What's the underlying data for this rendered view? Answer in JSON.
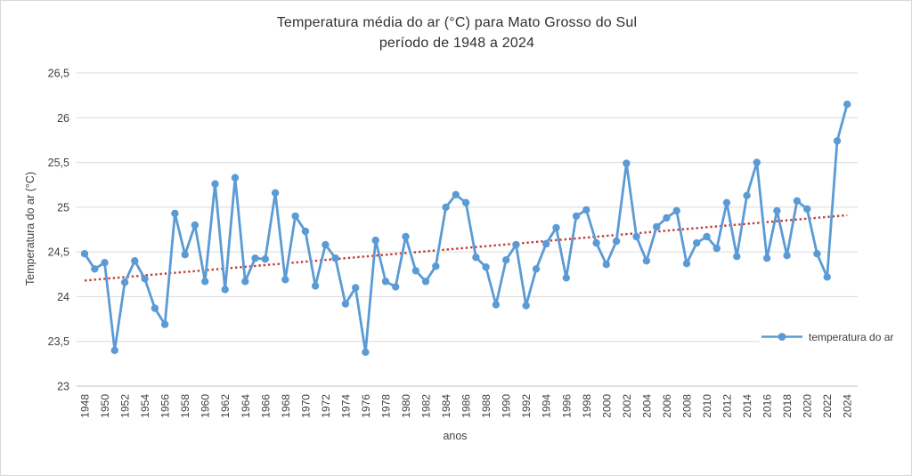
{
  "chart_data": {
    "type": "line",
    "title": "Temperatura média do ar (°C) para Mato Grosso do Sul",
    "subtitle": "período de 1948 a 2024",
    "xlabel": "anos",
    "ylabel": "Temperatura do ar (°C)",
    "ylim": [
      23,
      26.5
    ],
    "grid": "horizontal",
    "ytick_values": [
      26.5,
      26,
      25.5,
      25,
      24.5,
      24,
      23.5,
      23
    ],
    "ytick_labels": [
      "26,5",
      "26",
      "25,5",
      "25",
      "24,5",
      "24",
      "23,5",
      "23"
    ],
    "xtick_labels": [
      "1948",
      "1950",
      "1952",
      "1954",
      "1956",
      "1958",
      "1960",
      "1962",
      "1964",
      "1966",
      "1968",
      "1970",
      "1972",
      "1974",
      "1976",
      "1978",
      "1980",
      "1982",
      "1984",
      "1986",
      "1988",
      "1990",
      "1992",
      "1994",
      "1996",
      "1998",
      "2000",
      "2002",
      "2004",
      "2006",
      "2008",
      "2010",
      "2012",
      "2014",
      "2016",
      "2018",
      "2020",
      "2022",
      "2024"
    ],
    "legend": {
      "position": "right-middle",
      "entries": [
        {
          "label": "temperatura do ar",
          "color": "#5B9BD5",
          "marker": "circle"
        }
      ]
    },
    "series": [
      {
        "name": "temperatura do ar",
        "color": "#5B9BD5",
        "marker": "circle",
        "x": [
          1948,
          1949,
          1950,
          1951,
          1952,
          1953,
          1954,
          1955,
          1956,
          1957,
          1958,
          1959,
          1960,
          1961,
          1962,
          1963,
          1964,
          1965,
          1966,
          1967,
          1968,
          1969,
          1970,
          1971,
          1972,
          1973,
          1974,
          1975,
          1976,
          1977,
          1978,
          1979,
          1980,
          1981,
          1982,
          1983,
          1984,
          1985,
          1986,
          1987,
          1988,
          1989,
          1990,
          1991,
          1992,
          1993,
          1994,
          1995,
          1996,
          1997,
          1998,
          1999,
          2000,
          2001,
          2002,
          2003,
          2004,
          2005,
          2006,
          2007,
          2008,
          2009,
          2010,
          2011,
          2012,
          2013,
          2014,
          2015,
          2016,
          2017,
          2018,
          2019,
          2020,
          2021,
          2022,
          2023,
          2024
        ],
        "values": [
          24.48,
          24.31,
          24.38,
          23.4,
          24.16,
          24.4,
          24.2,
          23.87,
          23.69,
          24.93,
          24.47,
          24.8,
          24.17,
          25.26,
          24.08,
          25.33,
          24.17,
          24.43,
          24.42,
          25.16,
          24.19,
          24.9,
          24.73,
          24.12,
          24.58,
          24.43,
          23.92,
          24.1,
          23.38,
          24.63,
          24.17,
          24.11,
          24.67,
          24.29,
          24.17,
          24.34,
          25.0,
          25.14,
          25.05,
          24.44,
          24.33,
          23.91,
          24.41,
          24.58,
          23.9,
          24.31,
          24.59,
          24.77,
          24.21,
          24.9,
          24.97,
          24.6,
          24.36,
          24.62,
          25.49,
          24.67,
          24.4,
          24.78,
          24.88,
          24.96,
          24.37,
          24.6,
          24.67,
          24.54,
          25.05,
          24.45,
          25.13,
          25.5,
          24.43,
          24.96,
          24.46,
          25.07,
          24.98,
          24.48,
          24.22,
          25.74,
          26.15
        ]
      }
    ],
    "trendline": {
      "name": "linear trend",
      "style": "dotted",
      "color": "#C53A35",
      "x_start": 1948,
      "y_start": 24.18,
      "x_end": 2024,
      "y_end": 24.91
    },
    "colors": {
      "line": "#5B9BD5",
      "trend": "#C53A35",
      "gridline": "#D9D9D9",
      "axis_line": "#BFBFBF",
      "text": "#404040",
      "background": "#FFFFFF"
    }
  }
}
